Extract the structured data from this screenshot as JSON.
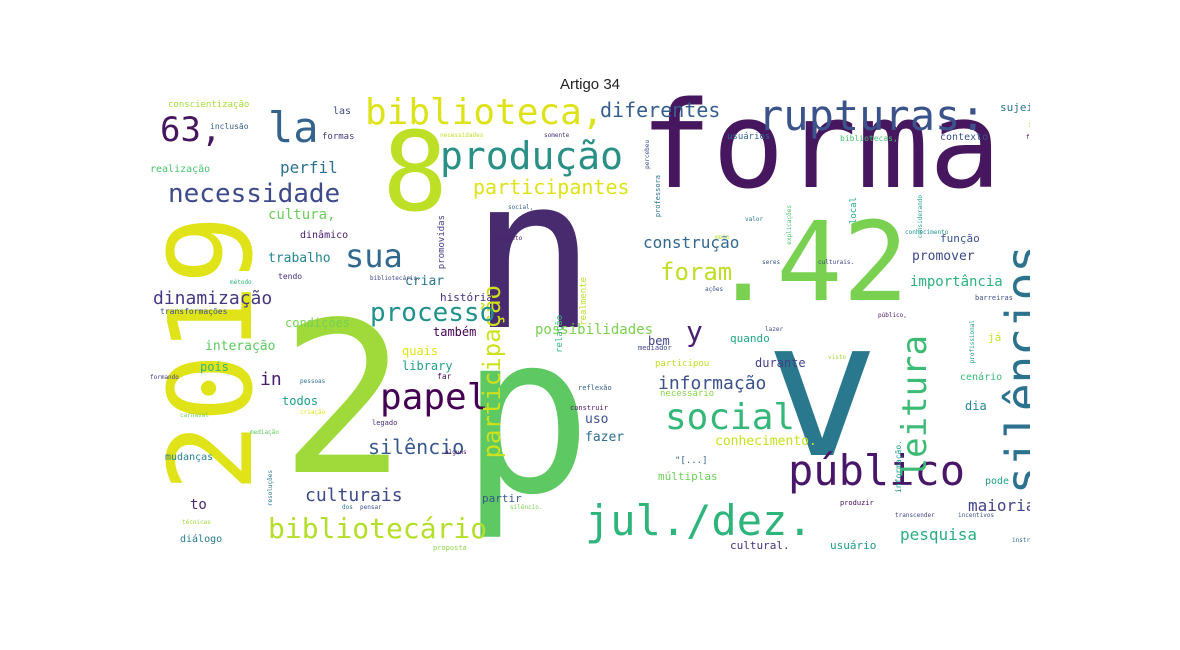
{
  "title": "Artigo 34",
  "colors": {
    "dark_purple": "#46165e",
    "purple": "#482b6e",
    "indigo": "#3f4889",
    "blue": "#38598c",
    "teal_blue": "#2a788e",
    "teal": "#22908c",
    "green_teal": "#25ab82",
    "green": "#44bf70",
    "light_green": "#7ad151",
    "lime": "#bddf26",
    "yellow": "#dfe318"
  },
  "words": [
    {
      "text": "forma",
      "color": "#46165e"
    },
    {
      "text": "n",
      "color": "#482b6e"
    },
    {
      "text": "p",
      "color": "#5ec962"
    },
    {
      "text": "2",
      "color": "#9fda3a"
    },
    {
      "text": "2019",
      "color": "#dfe318"
    },
    {
      "text": "8",
      "color": "#bddf26"
    },
    {
      "text": ".42",
      "color": "#7ad151"
    },
    {
      "text": "v",
      "color": "#2a788e"
    },
    {
      "text": "rupturas:",
      "color": "#3b528b"
    },
    {
      "text": "silêncios",
      "color": "#2c728e"
    },
    {
      "text": "produção",
      "color": "#2a9086"
    },
    {
      "text": "biblioteca,",
      "color": "#dde318"
    },
    {
      "text": "63,",
      "color": "#46165e"
    },
    {
      "text": "la",
      "color": "#33638d"
    },
    {
      "text": "jul./dez.",
      "color": "#2fb47c"
    },
    {
      "text": "público",
      "color": "#481769"
    },
    {
      "text": "leitura",
      "color": "#3cbb75"
    },
    {
      "text": "social",
      "color": "#35b779"
    },
    {
      "text": "papel",
      "color": "#440154"
    },
    {
      "text": "necessidade",
      "color": "#3e4a89"
    },
    {
      "text": "sua",
      "color": "#31688e"
    },
    {
      "text": "participação",
      "color": "#cde11d"
    },
    {
      "text": "bibliotecário",
      "color": "#b5de2b"
    },
    {
      "text": "processo",
      "color": "#21918c"
    },
    {
      "text": "foram",
      "color": "#bddf26"
    },
    {
      "text": "diferentes",
      "color": "#365d8d"
    },
    {
      "text": "participantes",
      "color": "#dde318"
    },
    {
      "text": "y",
      "color": "#482173"
    },
    {
      "text": "silêncio",
      "color": "#38598c"
    },
    {
      "text": "informação",
      "color": "#3b528b"
    },
    {
      "text": "construção",
      "color": "#31688e"
    },
    {
      "text": "dinamização",
      "color": "#443983"
    },
    {
      "text": "culturais",
      "color": "#3e4989"
    },
    {
      "text": "maioria",
      "color": "#414487"
    },
    {
      "text": "pesquisa",
      "color": "#29af7f"
    },
    {
      "text": "perfil",
      "color": "#2c728e"
    },
    {
      "text": "cultura,",
      "color": "#6ccd5a"
    },
    {
      "text": "in",
      "color": "#481a6c"
    },
    {
      "text": "possibilidades",
      "color": "#7ad151"
    },
    {
      "text": "importância",
      "color": "#2db27d"
    },
    {
      "text": "promover",
      "color": "#3e4a89"
    },
    {
      "text": "conhecimento.",
      "color": "#c8e020"
    },
    {
      "text": "trabalho",
      "color": "#25858e"
    },
    {
      "text": "criar",
      "color": "#2a788e"
    },
    {
      "text": "condições",
      "color": "#75d054"
    },
    {
      "text": "interação",
      "color": "#5ec962"
    },
    {
      "text": "também",
      "color": "#440154"
    },
    {
      "text": "quais",
      "color": "#dfe318"
    },
    {
      "text": "library",
      "color": "#1f9f88"
    },
    {
      "text": "todos",
      "color": "#1fa187"
    },
    {
      "text": "pois",
      "color": "#32b67a"
    },
    {
      "text": "to",
      "color": "#482878"
    },
    {
      "text": "uso",
      "color": "#3b528b"
    },
    {
      "text": "fazer",
      "color": "#2d708e"
    },
    {
      "text": "dia",
      "color": "#24878e"
    },
    {
      "text": "durante",
      "color": "#423f85"
    },
    {
      "text": "quando",
      "color": "#21a685"
    },
    {
      "text": "bem",
      "color": "#414487"
    },
    {
      "text": "múltiplas",
      "color": "#6ece58"
    },
    {
      "text": "partir",
      "color": "#38588c"
    },
    {
      "text": "cultural.",
      "color": "#46327e"
    },
    {
      "text": "usuário",
      "color": "#1e9b8a"
    },
    {
      "text": "história",
      "color": "#472f7d"
    },
    {
      "text": "dinâmico",
      "color": "#481b6d"
    },
    {
      "text": "função",
      "color": "#3a548c"
    },
    {
      "text": "sujeito",
      "color": "#2c728e"
    },
    {
      "text": "contexto",
      "color": "#3b528b"
    },
    {
      "text": "diálogo",
      "color": "#287d8e"
    },
    {
      "text": "mudanças",
      "color": "#26828e"
    },
    {
      "text": "realização",
      "color": "#4ac16d"
    },
    {
      "text": "conscientização",
      "color": "#a5db36"
    },
    {
      "text": "las",
      "color": "#3e4a89"
    },
    {
      "text": "formas",
      "color": "#443983"
    },
    {
      "text": "inclusão",
      "color": "#355f8d"
    },
    {
      "text": "cenário",
      "color": "#3aba76"
    },
    {
      "text": "pode",
      "color": "#1fa188"
    },
    {
      "text": "usuários",
      "color": "#31688e"
    },
    {
      "text": "transformações",
      "color": "#3b528b"
    },
    {
      "text": "relação",
      "color": "#35b779"
    },
    {
      "text": "realmente",
      "color": "#b8de29"
    },
    {
      "text": "local",
      "color": "#22a884"
    },
    {
      "text": "promovidas",
      "color": "#433e85"
    },
    {
      "text": "necessário",
      "color": "#86d549"
    },
    {
      "text": "informação.",
      "color": "#1f9a8a"
    },
    {
      "text": "já",
      "color": "#c0df25"
    },
    {
      "text": "tendo",
      "color": "#472d7b"
    },
    {
      "text": "\"[...]",
      "color": "#34608d"
    },
    {
      "text": "participou",
      "color": "#bddf26"
    },
    {
      "text": "far",
      "color": "#460b5e"
    },
    {
      "text": "bibliotecas,",
      "color": "#4ac16d"
    },
    {
      "text": "barreiras",
      "color": "#3d4e8a"
    },
    {
      "text": "professora",
      "color": "#2c738e"
    },
    {
      "text": "produzir",
      "color": "#46075a"
    },
    {
      "text": "reflexão",
      "color": "#34618d"
    },
    {
      "text": "proposta",
      "color": "#8bd646"
    },
    {
      "text": "mediador",
      "color": "#3f4889"
    },
    {
      "text": "legado",
      "color": "#482979"
    },
    {
      "text": "construir",
      "color": "#48186a"
    },
    {
      "text": "conhecimento",
      "color": "#1f958b"
    },
    {
      "text": "explicações",
      "color": "#4ac16d"
    },
    {
      "text": "considerando",
      "color": "#1f9e89"
    },
    {
      "text": "incentivos",
      "color": "#3b528b"
    },
    {
      "text": "transcender",
      "color": "#414487"
    },
    {
      "text": "instrumento",
      "color": "#31688e"
    },
    {
      "text": "problema",
      "color": "#25838e"
    },
    {
      "text": "formando",
      "color": "#443a83"
    },
    {
      "text": "carnaval",
      "color": "#73d056"
    },
    {
      "text": "criação",
      "color": "#dfe318"
    },
    {
      "text": "mediação",
      "color": "#5ec962"
    },
    {
      "text": "resoluções",
      "color": "#2a768e"
    },
    {
      "text": "técnicas",
      "color": "#9dd93b"
    },
    {
      "text": "profissional",
      "color": "#1f9a8a"
    },
    {
      "text": "culturais.",
      "color": "#3f4788"
    },
    {
      "text": "público,",
      "color": "#48186a"
    },
    {
      "text": "necessidades",
      "color": "#c2df23"
    },
    {
      "text": "somente",
      "color": "#46307e"
    },
    {
      "text": "pessoas",
      "color": "#2d708e"
    },
    {
      "text": "percebeu",
      "color": "#3b528b"
    },
    {
      "text": "seres",
      "color": "#3a538b"
    },
    {
      "text": "projeto",
      "color": "#482173"
    },
    {
      "text": "social,",
      "color": "#33638d"
    },
    {
      "text": "informações",
      "color": "#a8db34"
    },
    {
      "text": "valor",
      "color": "#2a788e"
    },
    {
      "text": "método",
      "color": "#2fb47c"
    },
    {
      "text": "bibliotecário.",
      "color": "#3f4788"
    },
    {
      "text": "silêncio.",
      "color": "#7ad151"
    },
    {
      "text": "pensar",
      "color": "#3e4a89"
    },
    {
      "text": "meio",
      "color": "#b5de2b"
    },
    {
      "text": "lazer",
      "color": "#3e4c8a"
    },
    {
      "text": "alguns",
      "color": "#48196b"
    },
    {
      "text": "dos",
      "color": "#2c728e"
    },
    {
      "text": "fala",
      "color": "#481668"
    },
    {
      "text": "visto",
      "color": "#a0da39"
    },
    {
      "text": "ações",
      "color": "#3b528b"
    }
  ]
}
